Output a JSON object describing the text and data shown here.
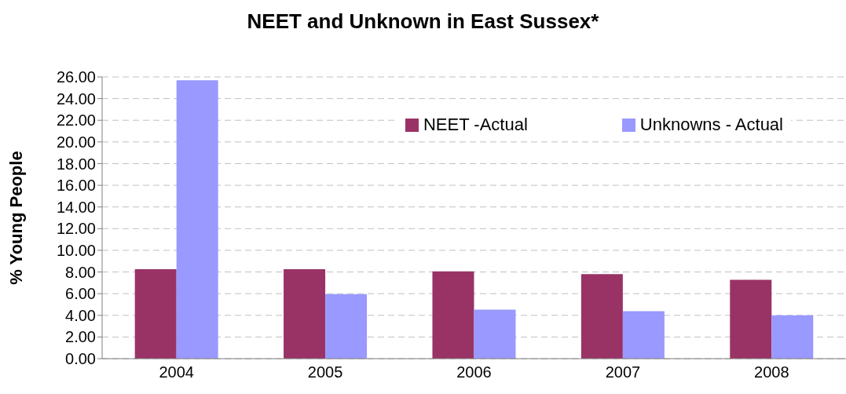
{
  "chart_data": {
    "type": "bar",
    "title": "NEET and Unknown in East Sussex*",
    "ylabel": "% Young People",
    "categories": [
      "2004",
      "2005",
      "2006",
      "2007",
      "2008"
    ],
    "series": [
      {
        "name": "NEET -Actual",
        "color": "#993366",
        "values": [
          8.25,
          8.25,
          8.05,
          7.8,
          7.27
        ]
      },
      {
        "name": "Unknowns - Actual",
        "color": "#9999ff",
        "values": [
          25.7,
          5.95,
          4.52,
          4.39,
          4.0
        ]
      }
    ],
    "ylim": [
      0,
      26
    ],
    "yticks": [
      {
        "value": 0,
        "label": "0.00"
      },
      {
        "value": 2,
        "label": "2.00"
      },
      {
        "value": 4,
        "label": "4.00"
      },
      {
        "value": 6,
        "label": "6.00"
      },
      {
        "value": 8,
        "label": "8.00"
      },
      {
        "value": 10,
        "label": "10.00"
      },
      {
        "value": 12,
        "label": "12.00"
      },
      {
        "value": 14,
        "label": "14.00"
      },
      {
        "value": 16,
        "label": "16.00"
      },
      {
        "value": 18,
        "label": "18.00"
      },
      {
        "value": 20,
        "label": "20.00"
      },
      {
        "value": 22,
        "label": "22.00"
      },
      {
        "value": 24,
        "label": "24.00"
      },
      {
        "value": 26,
        "label": "26.00"
      }
    ],
    "grid": "y",
    "legend": "top right"
  }
}
